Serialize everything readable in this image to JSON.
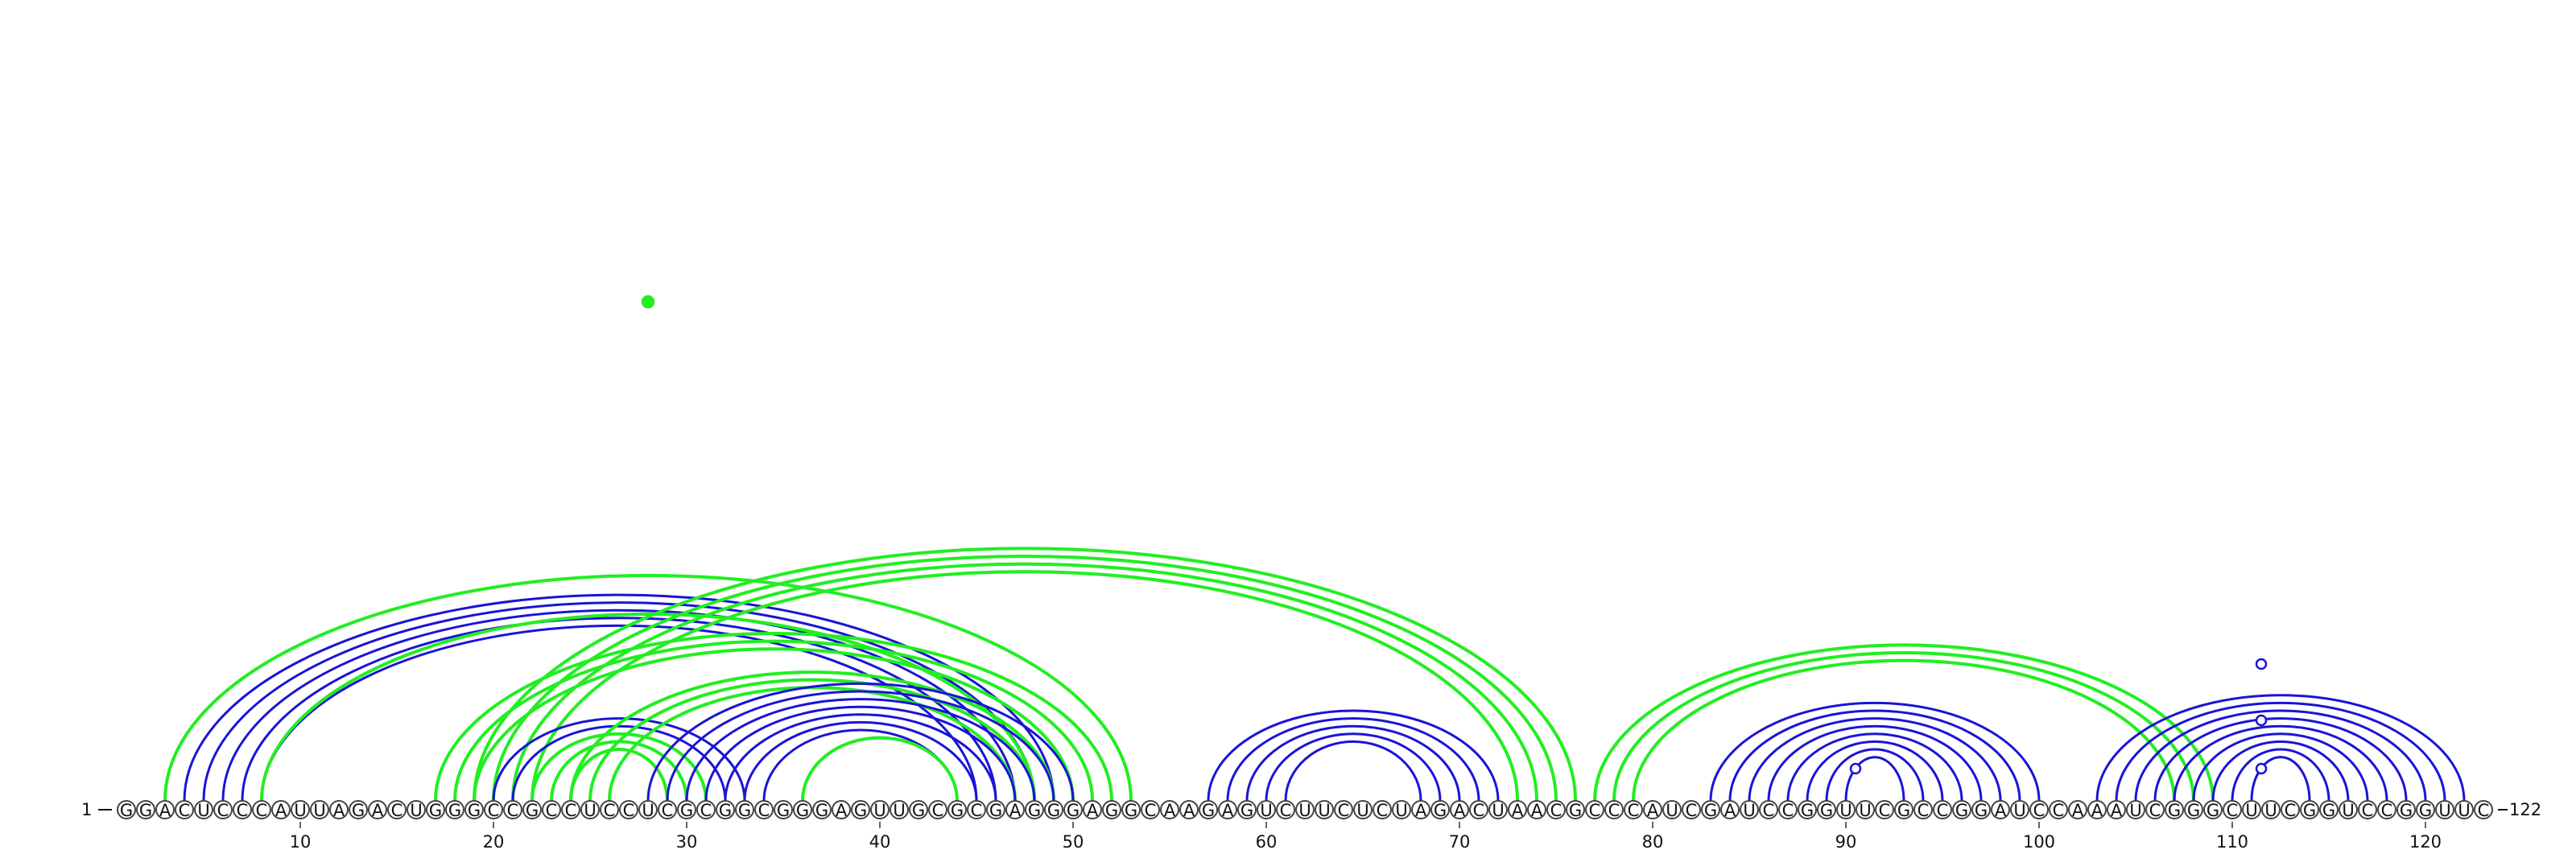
{
  "diagram": {
    "sequence": "GGACUCCCAUUAGACUGGGCCGCCUCCUCGCGGCGGGAGUUGCGCGAGGGAGGCAAGAGUCUUCUCUAGACUAACGCCCAUCGAUCCGGUUCGCCGGAUCCAAAUCGGGCUUCGGUCCGGUUC",
    "start_label": "1",
    "end_label": "122",
    "ticks": [
      10,
      20,
      30,
      40,
      50,
      60,
      70,
      80,
      90,
      100,
      110,
      120
    ],
    "colors": {
      "blue": "#1a14d6",
      "green": "#22ee22"
    },
    "pair_groups": [
      {
        "color": "blue",
        "pairs": [
          [
            4,
            49
          ],
          [
            5,
            48
          ],
          [
            6,
            47
          ],
          [
            7,
            46
          ],
          [
            8,
            45
          ]
        ]
      },
      {
        "color": "green",
        "pairs": [
          [
            3,
            53
          ],
          [
            8,
            48
          ]
        ]
      },
      {
        "color": "green",
        "pairs": [
          [
            17,
            52
          ],
          [
            18,
            51
          ],
          [
            19,
            50
          ]
        ]
      },
      {
        "color": "green",
        "pairs": [
          [
            19,
            76
          ],
          [
            20,
            75
          ],
          [
            21,
            74
          ],
          [
            22,
            73
          ]
        ]
      },
      {
        "color": "blue",
        "pairs": [
          [
            20,
            33
          ],
          [
            21,
            32
          ],
          [
            22,
            31
          ],
          [
            23,
            30
          ],
          [
            24,
            29
          ]
        ]
      },
      {
        "color": "green",
        "pairs": [
          [
            22,
            31
          ],
          [
            23,
            30
          ],
          [
            24,
            29
          ]
        ]
      },
      {
        "color": "green",
        "pairs": [
          [
            24,
            49
          ],
          [
            25,
            48
          ],
          [
            26,
            47
          ]
        ]
      },
      {
        "color": "blue",
        "pairs": [
          [
            28,
            50
          ],
          [
            29,
            49
          ],
          [
            30,
            48
          ],
          [
            31,
            47
          ],
          [
            32,
            46
          ],
          [
            33,
            45
          ],
          [
            34,
            44
          ]
        ]
      },
      {
        "color": "green",
        "pairs": [
          [
            36,
            44
          ]
        ]
      },
      {
        "color": "blue",
        "pairs": [
          [
            57,
            72
          ],
          [
            58,
            71
          ],
          [
            59,
            70
          ],
          [
            60,
            69
          ],
          [
            61,
            68
          ]
        ]
      },
      {
        "color": "green",
        "pairs": [
          [
            77,
            109
          ],
          [
            78,
            108
          ],
          [
            79,
            107
          ]
        ]
      },
      {
        "color": "blue",
        "pairs": [
          [
            83,
            100
          ],
          [
            84,
            99
          ],
          [
            85,
            98
          ],
          [
            86,
            97
          ],
          [
            87,
            96
          ],
          [
            88,
            95
          ],
          [
            89,
            94
          ],
          [
            90,
            93
          ]
        ]
      },
      {
        "color": "blue",
        "pairs": [
          [
            103,
            122
          ],
          [
            104,
            121
          ],
          [
            105,
            120
          ],
          [
            106,
            119
          ],
          [
            107,
            118
          ],
          [
            108,
            117
          ],
          [
            109,
            116
          ],
          [
            110,
            115
          ],
          [
            111,
            114
          ]
        ]
      }
    ],
    "markers": [
      {
        "pos": 28.0,
        "height": 0.62,
        "color": "green",
        "filled": true
      },
      {
        "pos": 90.5,
        "height": 0.04,
        "color": "blue",
        "filled": false
      },
      {
        "pos": 111.5,
        "height": 0.04,
        "color": "blue",
        "filled": false
      },
      {
        "pos": 111.5,
        "height": 0.1,
        "color": "blue",
        "filled": false
      },
      {
        "pos": 111.5,
        "height": 0.17,
        "color": "blue",
        "filled": false
      }
    ]
  }
}
